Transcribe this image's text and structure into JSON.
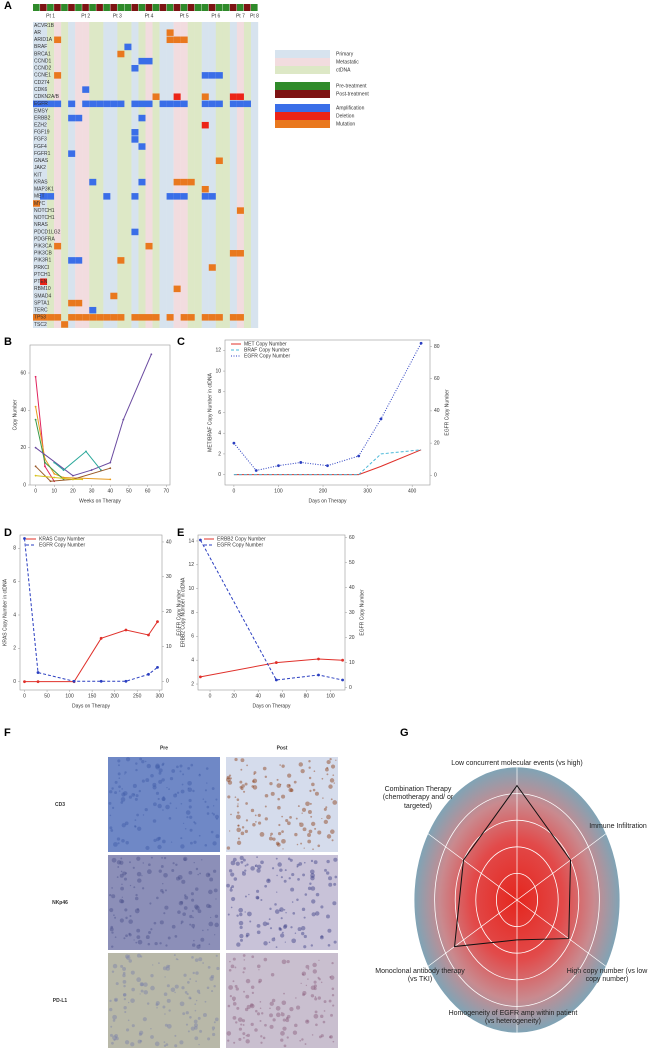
{
  "chart_data": [
    {
      "panel": "A",
      "type": "heatmap",
      "genes": [
        "ACVR1B",
        "AR",
        "ARID1A",
        "BRAF",
        "BRCA1",
        "CCND1",
        "CCND2",
        "CCNE1",
        "CD274",
        "CDK6",
        "CDKN2A/B",
        "EGFR",
        "EMSY",
        "ERBB2",
        "EZH2",
        "FGF19",
        "FGF3",
        "FGF4",
        "FGFR1",
        "GNAS",
        "JAK2",
        "KIT",
        "KRAS",
        "MAP3K1",
        "MET",
        "MYC",
        "NOTCH1",
        "NOTCH1",
        "NRAS",
        "PDCD1LG2",
        "PDGFRA",
        "PIK3CA",
        "PIK3CB",
        "PIK3R1",
        "PRKCI",
        "PTCH1",
        "PTEN",
        "RBM10",
        "SMAD4",
        "SPTA1",
        "TERC",
        "TP53",
        "TSC2"
      ],
      "patients": [
        "Pt 1",
        "Pt 2",
        "Pt 3",
        "Pt 4",
        "Pt 5",
        "Pt 6",
        "Pt 7",
        "Pt 8"
      ],
      "sample_patient": [
        0,
        0,
        0,
        0,
        0,
        1,
        1,
        1,
        1,
        1,
        2,
        2,
        2,
        2,
        3,
        3,
        3,
        3,
        3,
        4,
        4,
        4,
        4,
        4,
        5,
        5,
        5,
        5,
        6,
        6,
        6,
        7
      ],
      "sample_site": [
        0,
        0,
        2,
        1,
        2,
        0,
        1,
        1,
        2,
        2,
        0,
        0,
        2,
        2,
        0,
        2,
        1,
        2,
        0,
        0,
        1,
        1,
        2,
        2,
        0,
        0,
        2,
        2,
        0,
        1,
        2,
        0
      ],
      "sample_timepoint": [
        0,
        1,
        0,
        1,
        0,
        1,
        0,
        1,
        0,
        1,
        0,
        1,
        0,
        0,
        1,
        0,
        1,
        0,
        1,
        0,
        1,
        0,
        1,
        0,
        0,
        1,
        0,
        0,
        1,
        0,
        1,
        0
      ],
      "sites": [
        {
          "name": "Primary",
          "color": "#d7e3ee"
        },
        {
          "name": "Metastatic",
          "color": "#f2dcdf"
        },
        {
          "name": "ctDNA",
          "color": "#dde8c6"
        }
      ],
      "timepoints": [
        {
          "name": "Pre-treatment",
          "color": "#2f8a2a"
        },
        {
          "name": "Post-treatment",
          "color": "#7d1313"
        }
      ],
      "alterations": [
        {
          "name": "Amplification",
          "color": "#3a6ee8"
        },
        {
          "name": "Deletion",
          "color": "#ec2417"
        },
        {
          "name": "Mutation",
          "color": "#e9781e"
        }
      ],
      "events": [
        [
          11,
          0,
          0
        ],
        [
          11,
          1,
          0
        ],
        [
          11,
          2,
          0
        ],
        [
          11,
          3,
          0
        ],
        [
          11,
          5,
          0
        ],
        [
          11,
          7,
          0
        ],
        [
          11,
          8,
          0
        ],
        [
          11,
          9,
          0
        ],
        [
          11,
          10,
          0
        ],
        [
          11,
          11,
          0
        ],
        [
          11,
          12,
          0
        ],
        [
          11,
          14,
          0
        ],
        [
          11,
          15,
          0
        ],
        [
          11,
          16,
          0
        ],
        [
          11,
          18,
          0
        ],
        [
          11,
          19,
          0
        ],
        [
          11,
          20,
          0
        ],
        [
          11,
          21,
          0
        ],
        [
          11,
          24,
          0
        ],
        [
          11,
          25,
          0
        ],
        [
          11,
          26,
          0
        ],
        [
          11,
          28,
          0
        ],
        [
          11,
          29,
          0
        ],
        [
          11,
          30,
          0
        ],
        [
          41,
          0,
          2
        ],
        [
          41,
          1,
          2
        ],
        [
          41,
          2,
          2
        ],
        [
          41,
          3,
          2
        ],
        [
          41,
          5,
          2
        ],
        [
          41,
          6,
          2
        ],
        [
          41,
          7,
          2
        ],
        [
          41,
          8,
          2
        ],
        [
          41,
          9,
          2
        ],
        [
          41,
          10,
          2
        ],
        [
          41,
          11,
          2
        ],
        [
          41,
          12,
          2
        ],
        [
          41,
          14,
          2
        ],
        [
          41,
          15,
          2
        ],
        [
          41,
          16,
          2
        ],
        [
          41,
          17,
          2
        ],
        [
          41,
          19,
          2
        ],
        [
          41,
          21,
          2
        ],
        [
          41,
          22,
          2
        ],
        [
          41,
          24,
          2
        ],
        [
          41,
          25,
          2
        ],
        [
          41,
          26,
          2
        ],
        [
          41,
          28,
          2
        ],
        [
          41,
          29,
          2
        ],
        [
          1,
          19,
          2
        ],
        [
          2,
          19,
          2
        ],
        [
          2,
          20,
          2
        ],
        [
          2,
          21,
          2
        ],
        [
          2,
          3,
          2
        ],
        [
          3,
          13,
          0
        ],
        [
          4,
          12,
          2
        ],
        [
          5,
          15,
          0
        ],
        [
          5,
          16,
          0
        ],
        [
          6,
          14,
          0
        ],
        [
          7,
          3,
          2
        ],
        [
          7,
          24,
          0
        ],
        [
          7,
          25,
          0
        ],
        [
          7,
          26,
          0
        ],
        [
          9,
          7,
          0
        ],
        [
          10,
          20,
          1
        ],
        [
          10,
          28,
          1
        ],
        [
          10,
          29,
          1
        ],
        [
          10,
          24,
          2
        ],
        [
          10,
          17,
          2
        ],
        [
          13,
          5,
          0
        ],
        [
          13,
          6,
          0
        ],
        [
          13,
          15,
          0
        ],
        [
          14,
          24,
          1
        ],
        [
          15,
          14,
          0
        ],
        [
          16,
          14,
          0
        ],
        [
          17,
          15,
          0
        ],
        [
          18,
          5,
          0
        ],
        [
          19,
          26,
          2
        ],
        [
          22,
          8,
          0
        ],
        [
          22,
          15,
          0
        ],
        [
          22,
          20,
          2
        ],
        [
          22,
          21,
          2
        ],
        [
          22,
          22,
          2
        ],
        [
          23,
          24,
          2
        ],
        [
          24,
          1,
          0
        ],
        [
          24,
          2,
          0
        ],
        [
          24,
          10,
          0
        ],
        [
          24,
          14,
          0
        ],
        [
          24,
          19,
          0
        ],
        [
          24,
          20,
          0
        ],
        [
          24,
          21,
          0
        ],
        [
          24,
          24,
          0
        ],
        [
          24,
          25,
          0
        ],
        [
          25,
          0,
          2
        ],
        [
          26,
          29,
          2
        ],
        [
          29,
          14,
          0
        ],
        [
          31,
          3,
          2
        ],
        [
          31,
          16,
          2
        ],
        [
          32,
          28,
          2
        ],
        [
          32,
          29,
          2
        ],
        [
          33,
          5,
          0
        ],
        [
          33,
          6,
          0
        ],
        [
          33,
          12,
          2
        ],
        [
          34,
          25,
          2
        ],
        [
          36,
          1,
          1
        ],
        [
          37,
          20,
          2
        ],
        [
          38,
          11,
          2
        ],
        [
          39,
          5,
          2
        ],
        [
          39,
          6,
          2
        ],
        [
          40,
          8,
          0
        ],
        [
          42,
          4,
          2
        ]
      ]
    },
    {
      "panel": "B",
      "type": "line",
      "xlabel": "Weeks on Therapy",
      "ylabel": "Copy Number",
      "xlim": [
        -3,
        72
      ],
      "ylim": [
        0,
        75
      ],
      "xticks": [
        0,
        10,
        20,
        30,
        40,
        50,
        60,
        70
      ],
      "yticks": [
        0,
        20,
        40,
        60
      ],
      "series": [
        {
          "color": "#e0245e",
          "x": [
            0,
            5,
            10
          ],
          "values": [
            58,
            10,
            2
          ]
        },
        {
          "color": "#e89b1d",
          "x": [
            0,
            5,
            10,
            15,
            40
          ],
          "values": [
            42,
            14,
            6,
            4,
            3
          ]
        },
        {
          "color": "#3a9a4a",
          "x": [
            0,
            5,
            15
          ],
          "values": [
            35,
            12,
            3
          ]
        },
        {
          "color": "#6a4aa0",
          "x": [
            0,
            20,
            30,
            40,
            47,
            62
          ],
          "values": [
            20,
            5,
            8,
            12,
            35,
            70
          ]
        },
        {
          "color": "#2aa89a",
          "x": [
            10,
            15,
            27,
            35
          ],
          "values": [
            12,
            8,
            18,
            8
          ]
        },
        {
          "color": "#9a5a2a",
          "x": [
            0,
            8,
            20,
            40
          ],
          "values": [
            10,
            2,
            3,
            9
          ]
        },
        {
          "color": "#d8c21a",
          "x": [
            0,
            10,
            20,
            25
          ],
          "values": [
            5,
            4,
            3,
            3
          ]
        }
      ]
    },
    {
      "panel": "C",
      "type": "line",
      "xlabel": "Days on Therapy",
      "ylabel": "MET/BRAF Copy Number in ctDNA",
      "y2label": "EGFR Copy Number",
      "xlim": [
        -20,
        440
      ],
      "ylim": [
        -1,
        13
      ],
      "y2lim": [
        -6,
        84
      ],
      "xticks": [
        0,
        100,
        200,
        300,
        400
      ],
      "yticks": [
        0,
        2,
        4,
        6,
        8,
        10,
        12
      ],
      "y2ticks": [
        0,
        20,
        40,
        60,
        80
      ],
      "legend": "upper left",
      "x": [
        0,
        50,
        100,
        150,
        210,
        280,
        330,
        420
      ],
      "series": [
        {
          "name": "MET Copy Number",
          "color": "#e0302a",
          "dash": "solid",
          "values": [
            0,
            0,
            0,
            0,
            0,
            0,
            0.8,
            2.4
          ]
        },
        {
          "name": "BRAF Copy Number",
          "color": "#4ab8d8",
          "dash": "dashed",
          "values": [
            0,
            0,
            0,
            0,
            0,
            0,
            2,
            2.4
          ]
        },
        {
          "name": "EGFR Copy Number",
          "color": "#2a3ec0",
          "dash": "dotted",
          "marker": true,
          "axis": "y2",
          "values": [
            20,
            3,
            6,
            8,
            6,
            12,
            35,
            82
          ]
        }
      ]
    },
    {
      "panel": "D",
      "type": "line",
      "xlabel": "Days on Therapy",
      "ylabel": "KRAS Copy Number in ctDNA",
      "y2label": "EGFR Copy Number",
      "xlim": [
        -10,
        305
      ],
      "ylim": [
        -0.5,
        8.8
      ],
      "y2lim": [
        -2.5,
        42
      ],
      "xticks": [
        0,
        50,
        100,
        150,
        200,
        250,
        300
      ],
      "yticks": [
        0,
        2,
        4,
        6,
        8
      ],
      "y2ticks": [
        0,
        10,
        20,
        30,
        40
      ],
      "legend": "upper left",
      "x": [
        0,
        30,
        110,
        170,
        225,
        275,
        295
      ],
      "series": [
        {
          "name": "KRAS Copy Number",
          "color": "#e0302a",
          "dash": "solid",
          "marker": true,
          "values": [
            0,
            0,
            0,
            2.6,
            3.1,
            2.8,
            3.6
          ]
        },
        {
          "name": "EGFR Copy Number",
          "color": "#2a3ec0",
          "dash": "dashed",
          "marker": true,
          "axis": "y2",
          "values": [
            41,
            2.5,
            0,
            0,
            0,
            2,
            4
          ]
        }
      ]
    },
    {
      "panel": "E",
      "type": "line",
      "xlabel": "Days on Therapy",
      "ylabel": "ERBB2 Copy Number in ctDNA",
      "y2label": "EGFR Copy Number",
      "xlim": [
        -10,
        112
      ],
      "ylim": [
        1.5,
        14.5
      ],
      "y2lim": [
        -1,
        61
      ],
      "xticks": [
        0,
        20,
        40,
        60,
        80,
        100
      ],
      "yticks": [
        2,
        4,
        6,
        8,
        10,
        12,
        14
      ],
      "y2ticks": [
        0,
        10,
        20,
        30,
        40,
        50,
        60
      ],
      "legend": "upper left",
      "x": [
        -8,
        55,
        90,
        110
      ],
      "series": [
        {
          "name": "ERBB2 Copy Number",
          "color": "#e0302a",
          "dash": "solid",
          "marker": true,
          "values": [
            2.6,
            3.8,
            4.1,
            4.0
          ]
        },
        {
          "name": "EGFR Copy Number",
          "color": "#2a3ec0",
          "dash": "dashed",
          "marker": true,
          "axis": "y2",
          "values": [
            59,
            3,
            5,
            3
          ]
        }
      ]
    },
    {
      "panel": "G",
      "type": "radar",
      "axes": [
        "Low concurrent molecular events (vs high)",
        "Immune Infiltration",
        "High copy number (vs low copy number)",
        "Homogeneity of EGFR amp within patient (vs heterogeneity)",
        "Monoclonal antibody therapy (vs TKI)",
        "Combination Therapy (chemotherapy and/ or targeted)"
      ],
      "values": [
        4.3,
        3.0,
        2.9,
        1.5,
        3.5,
        3.0
      ],
      "rlim": [
        0,
        5
      ],
      "rticks": [
        1,
        2,
        3,
        4,
        5
      ]
    }
  ],
  "image_panel": {
    "panel": "F",
    "columns": [
      "Pre",
      "Post"
    ],
    "rows": [
      "CD3",
      "NKp46",
      "PD-L1"
    ]
  }
}
